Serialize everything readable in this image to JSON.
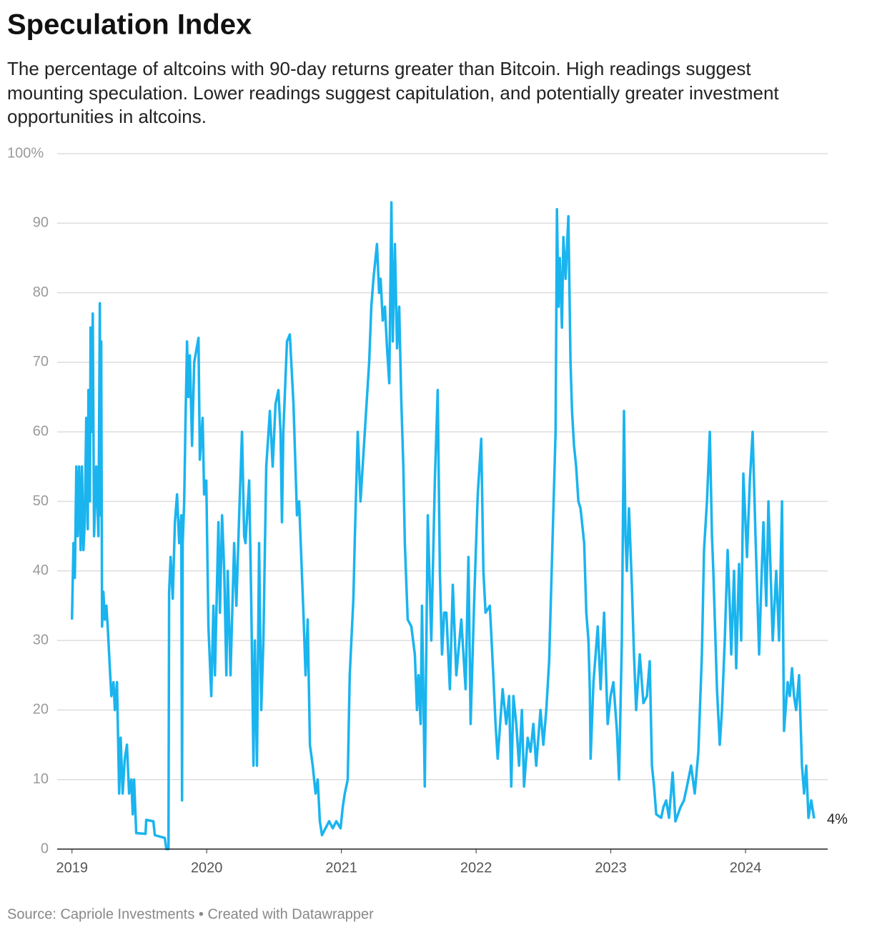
{
  "chart_data": {
    "type": "line",
    "title": "Speculation Index",
    "subtitle": [
      "The percentage of altcoins with 90-day returns greater than Bitcoin. High readings suggest",
      "mounting speculation. Lower readings suggest capitulation, and potentially greater investment",
      "opportunities in altcoins."
    ],
    "source": "Source: Capriole Investments • Created with Datawrapper",
    "xlim": [
      2018.89,
      2024.61
    ],
    "xticks": [
      2019,
      2020,
      2021,
      2022,
      2023,
      2024
    ],
    "ylim": [
      0,
      100
    ],
    "yticks": [
      0,
      10,
      20,
      30,
      40,
      50,
      60,
      70,
      80,
      90,
      {
        "value": 100,
        "label": "100%"
      }
    ],
    "grid": true,
    "end_label": {
      "value": 4,
      "label": "4%"
    },
    "x": [
      2019.0,
      2019.011,
      2019.021,
      2019.032,
      2019.042,
      2019.053,
      2019.064,
      2019.074,
      2019.085,
      2019.095,
      2019.106,
      2019.117,
      2019.122,
      2019.133,
      2019.138,
      2019.148,
      2019.154,
      2019.164,
      2019.18,
      2019.196,
      2019.207,
      2019.212,
      2019.217,
      2019.223,
      2019.233,
      2019.244,
      2019.255,
      2019.265,
      2019.281,
      2019.292,
      2019.308,
      2019.318,
      2019.334,
      2019.35,
      2019.361,
      2019.376,
      2019.392,
      2019.408,
      2019.424,
      2019.44,
      2019.451,
      2019.461,
      2019.477,
      2019.546,
      2019.551,
      2019.604,
      2019.615,
      2019.689,
      2019.7,
      2019.716,
      2019.721,
      2019.732,
      2019.748,
      2019.764,
      2019.78,
      2019.796,
      2019.811,
      2019.817,
      2019.822,
      2019.833,
      2019.843,
      2019.854,
      2019.864,
      2019.875,
      2019.891,
      2019.907,
      2019.939,
      2019.949,
      2019.97,
      2019.981,
      2019.997,
      2020.013,
      2020.034,
      2020.05,
      2020.061,
      2020.087,
      2020.098,
      2020.114,
      2020.13,
      2020.146,
      2020.156,
      2020.177,
      2020.204,
      2020.22,
      2020.241,
      2020.262,
      2020.278,
      2020.288,
      2020.315,
      2020.331,
      2020.347,
      2020.357,
      2020.373,
      2020.389,
      2020.405,
      2020.421,
      2020.442,
      2020.469,
      2020.49,
      2020.511,
      2020.532,
      2020.548,
      2020.559,
      2020.569,
      2020.596,
      2020.617,
      2020.644,
      2020.67,
      2020.686,
      2020.718,
      2020.734,
      2020.75,
      2020.766,
      2020.787,
      2020.808,
      2020.824,
      2020.84,
      2020.856,
      2020.882,
      2020.909,
      2020.936,
      2020.962,
      2020.994,
      2021.01,
      2021.025,
      2021.047,
      2021.062,
      2021.089,
      2021.1,
      2021.121,
      2021.142,
      2021.174,
      2021.206,
      2021.222,
      2021.238,
      2021.264,
      2021.28,
      2021.291,
      2021.307,
      2021.323,
      2021.339,
      2021.355,
      2021.371,
      2021.381,
      2021.397,
      2021.413,
      2021.429,
      2021.444,
      2021.46,
      2021.471,
      2021.492,
      2021.519,
      2021.545,
      2021.561,
      2021.572,
      2021.588,
      2021.598,
      2021.619,
      2021.641,
      2021.667,
      2021.694,
      2021.715,
      2021.731,
      2021.747,
      2021.763,
      2021.779,
      2021.805,
      2021.827,
      2021.853,
      2021.89,
      2021.922,
      2021.943,
      2021.959,
      2021.986,
      2022.012,
      2022.038,
      2022.054,
      2022.07,
      2022.102,
      2022.128,
      2022.144,
      2022.16,
      2022.197,
      2022.224,
      2022.245,
      2022.261,
      2022.277,
      2022.298,
      2022.319,
      2022.34,
      2022.356,
      2022.383,
      2022.404,
      2022.425,
      2022.446,
      2022.478,
      2022.499,
      2022.521,
      2022.542,
      2022.568,
      2022.59,
      2022.6,
      2022.611,
      2022.621,
      2022.637,
      2022.648,
      2022.664,
      2022.685,
      2022.701,
      2022.712,
      2022.727,
      2022.743,
      2022.759,
      2022.775,
      2022.802,
      2022.818,
      2022.834,
      2022.844,
      2022.85,
      2022.871,
      2022.887,
      2022.903,
      2022.924,
      2022.95,
      2022.977,
      2022.998,
      2023.019,
      2023.045,
      2023.061,
      2023.082,
      2023.098,
      2023.109,
      2023.119,
      2023.135,
      2023.156,
      2023.172,
      2023.188,
      2023.215,
      2023.242,
      2023.268,
      2023.289,
      2023.305,
      2023.321,
      2023.337,
      2023.374,
      2023.39,
      2023.411,
      2023.432,
      2023.459,
      2023.48,
      2023.517,
      2023.543,
      2023.565,
      2023.596,
      2023.623,
      2023.65,
      2023.676,
      2023.692,
      2023.714,
      2023.735,
      2023.751,
      2023.761,
      2023.788,
      2023.809,
      2023.825,
      2023.846,
      2023.867,
      2023.883,
      2023.894,
      2023.915,
      2023.931,
      2023.952,
      2023.968,
      2023.984,
      2024.011,
      2024.032,
      2024.053,
      2024.074,
      2024.101,
      2024.117,
      2024.133,
      2024.154,
      2024.17,
      2024.186,
      2024.202,
      2024.228,
      2024.249,
      2024.271,
      2024.286,
      2024.313,
      2024.329,
      2024.345,
      2024.36,
      2024.376,
      2024.398,
      2024.419,
      2024.435,
      2024.451,
      2024.467,
      2024.488,
      2024.509
    ],
    "series": [
      {
        "color": "#1ab4ef",
        "values": [
          33,
          44,
          39,
          55,
          45,
          55,
          43,
          55,
          43,
          47,
          62,
          46,
          66,
          50,
          75,
          60,
          77,
          45,
          55,
          45,
          78.5,
          48,
          73,
          32,
          37,
          33,
          35,
          32,
          26,
          22,
          24,
          20,
          24,
          8,
          16,
          8,
          13,
          15,
          8,
          10,
          5,
          10,
          2.3,
          2.2,
          4.2,
          4,
          2,
          1.6,
          0,
          0,
          37,
          42,
          36,
          47,
          51,
          44,
          48,
          7,
          44,
          50,
          62,
          73,
          65,
          71,
          58,
          70,
          73.5,
          56,
          62,
          51,
          53,
          32,
          22,
          35,
          25,
          47,
          34,
          48,
          40,
          25,
          40,
          25,
          44,
          35,
          48,
          60,
          45,
          44,
          53,
          35,
          12,
          30,
          12,
          44,
          20,
          30,
          55,
          63,
          55,
          64,
          66,
          60,
          47,
          60,
          73,
          74,
          64,
          48,
          50,
          34,
          25,
          33,
          15,
          12,
          8,
          10,
          4,
          2,
          3,
          4,
          3,
          4,
          3,
          6,
          8,
          10,
          25,
          36,
          45,
          60,
          50,
          60,
          70,
          78,
          82,
          87,
          80,
          82,
          76,
          78,
          72,
          67,
          93,
          73,
          87,
          72,
          78,
          65,
          55,
          44,
          33,
          32,
          28,
          20,
          25,
          18,
          35,
          9,
          48,
          30,
          53,
          66,
          40,
          28,
          34,
          34,
          23,
          38,
          25,
          33,
          23,
          42,
          18,
          36,
          51,
          59,
          40,
          34,
          35,
          25,
          18,
          13,
          23,
          18,
          22,
          9,
          22,
          18,
          12,
          20,
          9,
          16,
          14,
          18,
          12,
          20,
          15,
          20,
          27,
          45,
          60,
          92,
          78,
          85,
          75,
          88,
          82,
          91,
          70,
          63,
          58,
          55,
          50,
          49,
          44,
          34,
          30,
          23,
          13,
          24,
          28,
          32,
          23,
          34,
          18,
          22,
          24,
          17,
          10,
          30,
          63,
          45,
          40,
          49,
          38,
          28,
          20,
          28,
          21,
          22,
          27,
          12,
          9,
          5,
          4.5,
          6,
          7,
          4.5,
          11,
          4,
          6,
          7,
          9,
          12,
          8,
          14,
          28,
          43,
          50,
          60,
          45,
          40,
          23,
          15,
          20,
          30,
          43,
          35,
          28,
          40,
          26,
          41,
          30,
          54,
          42,
          53,
          60,
          45,
          28,
          38,
          47,
          35,
          50,
          40,
          30,
          40,
          30,
          50,
          17,
          24,
          22,
          26,
          22,
          20,
          25,
          12,
          8,
          12,
          4.5,
          7,
          4.4
        ]
      }
    ]
  }
}
